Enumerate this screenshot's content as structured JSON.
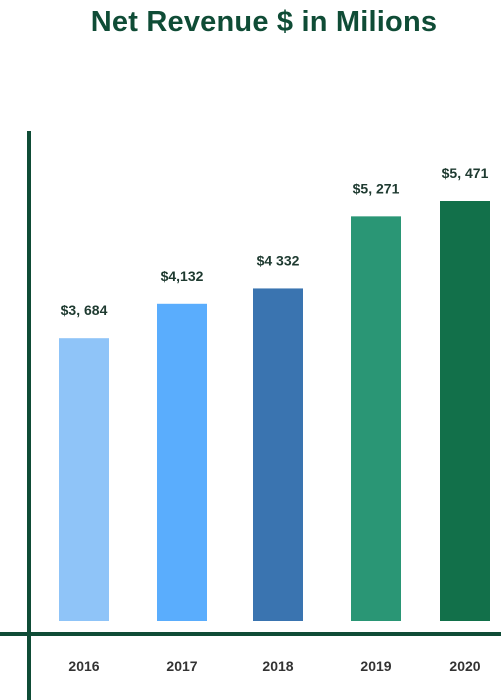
{
  "chart_data": {
    "type": "bar",
    "title": "Net Revenue $ in Milions",
    "xlabel": "",
    "ylabel": "",
    "categories": [
      "2016",
      "2017",
      "2018",
      "2019",
      "2020"
    ],
    "values": [
      3684,
      4132,
      4332,
      5271,
      5471
    ],
    "data_labels": [
      "$3, 684",
      "$4,132",
      "$4 332",
      "$5, 271",
      "$5, 471"
    ],
    "colors": [
      "#8fc4f8",
      "#5aadfd",
      "#3a74b0",
      "#2a9675",
      "#12704a"
    ],
    "axis_color": "#0f4c36",
    "ylim": [
      0,
      5800
    ],
    "grid": false,
    "legend": "none"
  }
}
